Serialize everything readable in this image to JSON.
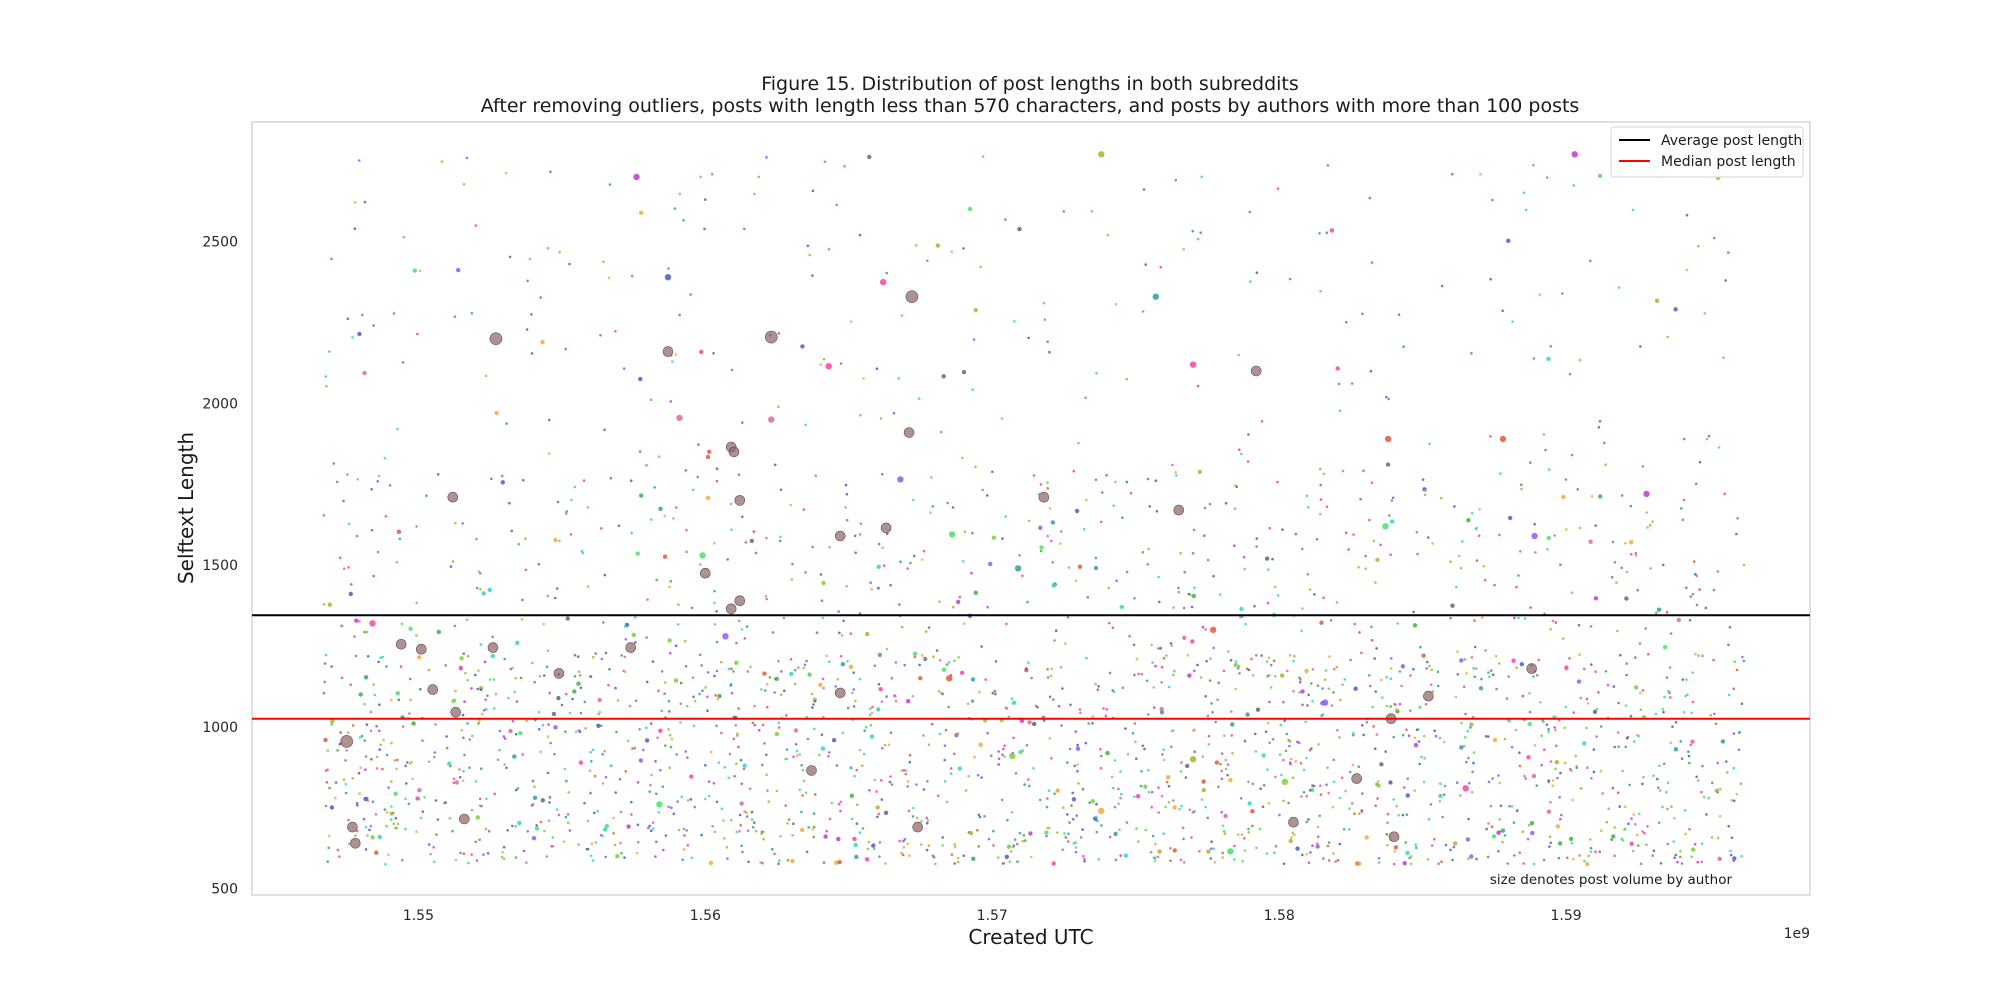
{
  "chart_data": {
    "type": "scatter",
    "title": "Figure 15. Distribution of post lengths in both subreddits",
    "subtitle": "After removing outliers, posts with length less than 570 characters, and posts by authors with more than 100 posts",
    "xlabel": "Created UTC",
    "ylabel": "Selftext Length",
    "x_offset_label": "1e9",
    "xlim": [
      1.5442,
      1.5985
    ],
    "ylim": [
      480,
      2870
    ],
    "x_ticks": [
      1.55,
      1.56,
      1.57,
      1.58,
      1.59
    ],
    "x_tick_labels": [
      "1.55",
      "1.56",
      "1.57",
      "1.58",
      "1.59"
    ],
    "y_ticks": [
      500,
      1000,
      1500,
      2000,
      2500
    ],
    "y_tick_labels": [
      "500",
      "1000",
      "1500",
      "2000",
      "2500"
    ],
    "grid": false,
    "legend_position": "top-right",
    "annotation": "size denotes post volume by author",
    "reference_lines": [
      {
        "name": "Average post length",
        "y": 1345,
        "color": "#000000"
      },
      {
        "name": "Median post length",
        "y": 1025,
        "color": "#ff0000"
      }
    ],
    "palette": [
      "#4a5cc9",
      "#e05a3c",
      "#3cb043",
      "#c03ad8",
      "#35d3c0",
      "#ff3fa4",
      "#7bd13a",
      "#f2a93b",
      "#8b5cf6",
      "#2f9e9e",
      "#d96a9a",
      "#5c6b73",
      "#46e26a",
      "#b0b030"
    ],
    "large_point_color": "#8a6464",
    "points": [
      {
        "x": 1.5475,
        "y": 955,
        "size": 4
      },
      {
        "x": 1.5477,
        "y": 690,
        "size": 3
      },
      {
        "x": 1.5478,
        "y": 640,
        "size": 3
      },
      {
        "x": 1.5494,
        "y": 1255,
        "size": 3
      },
      {
        "x": 1.5501,
        "y": 1240,
        "size": 3
      },
      {
        "x": 1.5505,
        "y": 1115,
        "size": 3
      },
      {
        "x": 1.5512,
        "y": 1710,
        "size": 3
      },
      {
        "x": 1.5513,
        "y": 1045,
        "size": 3
      },
      {
        "x": 1.5516,
        "y": 715,
        "size": 3
      },
      {
        "x": 1.5527,
        "y": 2200,
        "size": 4
      },
      {
        "x": 1.5526,
        "y": 1245,
        "size": 3
      },
      {
        "x": 1.5549,
        "y": 1165,
        "size": 3
      },
      {
        "x": 1.5574,
        "y": 1245,
        "size": 3
      },
      {
        "x": 1.5587,
        "y": 2160,
        "size": 3
      },
      {
        "x": 1.56,
        "y": 1475,
        "size": 3
      },
      {
        "x": 1.5609,
        "y": 1865,
        "size": 3
      },
      {
        "x": 1.561,
        "y": 1850,
        "size": 3
      },
      {
        "x": 1.5612,
        "y": 1700,
        "size": 3
      },
      {
        "x": 1.5612,
        "y": 1390,
        "size": 3
      },
      {
        "x": 1.5609,
        "y": 1365,
        "size": 3
      },
      {
        "x": 1.5623,
        "y": 2205,
        "size": 4
      },
      {
        "x": 1.5637,
        "y": 865,
        "size": 3
      },
      {
        "x": 1.5647,
        "y": 1590,
        "size": 3
      },
      {
        "x": 1.5647,
        "y": 1105,
        "size": 3
      },
      {
        "x": 1.5663,
        "y": 1615,
        "size": 3
      },
      {
        "x": 1.5672,
        "y": 2330,
        "size": 4
      },
      {
        "x": 1.5671,
        "y": 1910,
        "size": 3
      },
      {
        "x": 1.5674,
        "y": 690,
        "size": 3
      },
      {
        "x": 1.5718,
        "y": 1710,
        "size": 3
      },
      {
        "x": 1.5765,
        "y": 1670,
        "size": 3
      },
      {
        "x": 1.5792,
        "y": 2100,
        "size": 3
      },
      {
        "x": 1.5805,
        "y": 705,
        "size": 3
      },
      {
        "x": 1.5827,
        "y": 840,
        "size": 3
      },
      {
        "x": 1.5839,
        "y": 1025,
        "size": 3
      },
      {
        "x": 1.584,
        "y": 660,
        "size": 3
      },
      {
        "x": 1.5852,
        "y": 1095,
        "size": 3
      },
      {
        "x": 1.5888,
        "y": 1180,
        "size": 3
      },
      {
        "x": 1.5484,
        "y": 1320,
        "size": 2
      },
      {
        "x": 1.5607,
        "y": 1280,
        "size": 2
      },
      {
        "x": 1.5662,
        "y": 2375,
        "size": 2
      },
      {
        "x": 1.5668,
        "y": 1765,
        "size": 2
      },
      {
        "x": 1.5686,
        "y": 1595,
        "size": 2
      },
      {
        "x": 1.5757,
        "y": 2330,
        "size": 2
      },
      {
        "x": 1.577,
        "y": 2120,
        "size": 2
      },
      {
        "x": 1.5777,
        "y": 1300,
        "size": 2
      },
      {
        "x": 1.5816,
        "y": 1075,
        "size": 2
      },
      {
        "x": 1.5838,
        "y": 1890,
        "size": 2
      },
      {
        "x": 1.5837,
        "y": 1620,
        "size": 2
      },
      {
        "x": 1.5878,
        "y": 1890,
        "size": 2
      },
      {
        "x": 1.5889,
        "y": 1590,
        "size": 2
      },
      {
        "x": 1.5865,
        "y": 810,
        "size": 2
      },
      {
        "x": 1.5783,
        "y": 615,
        "size": 2
      },
      {
        "x": 1.5623,
        "y": 1950,
        "size": 2
      },
      {
        "x": 1.5643,
        "y": 2115,
        "size": 2
      },
      {
        "x": 1.5591,
        "y": 1955,
        "size": 2
      },
      {
        "x": 1.5576,
        "y": 2700,
        "size": 2
      },
      {
        "x": 1.5587,
        "y": 2390,
        "size": 2
      },
      {
        "x": 1.5903,
        "y": 2770,
        "size": 2
      },
      {
        "x": 1.5738,
        "y": 2770,
        "size": 2
      },
      {
        "x": 1.5599,
        "y": 1530,
        "size": 2
      },
      {
        "x": 1.5685,
        "y": 1150,
        "size": 2
      },
      {
        "x": 1.5707,
        "y": 910,
        "size": 2
      },
      {
        "x": 1.5738,
        "y": 740,
        "size": 2
      },
      {
        "x": 1.5584,
        "y": 760,
        "size": 2
      },
      {
        "x": 1.5709,
        "y": 1490,
        "size": 2
      },
      {
        "x": 1.577,
        "y": 900,
        "size": 2
      },
      {
        "x": 1.5802,
        "y": 830,
        "size": 2
      },
      {
        "x": 1.5928,
        "y": 1720,
        "size": 2
      }
    ]
  }
}
